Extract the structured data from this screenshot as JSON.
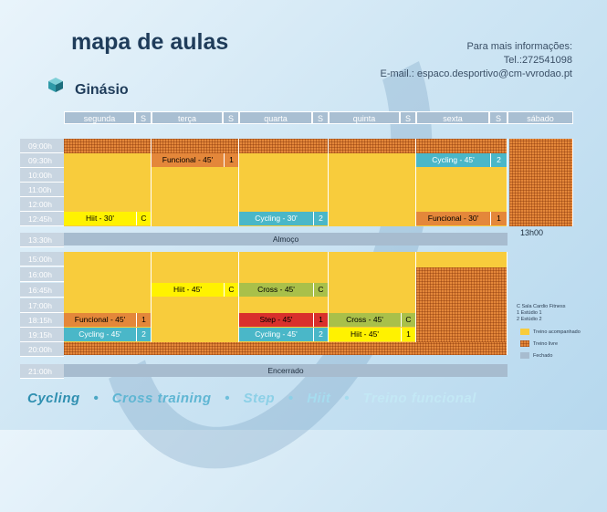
{
  "title": "mapa de aulas",
  "subtitle": "Ginásio",
  "contact": {
    "line1": "Para mais informações:",
    "line2": "Tel.:272541098",
    "line3": "E-mail.: espaco.desportivo@cm-vvrodao.pt"
  },
  "days": [
    "segunda",
    "S",
    "terça",
    "S",
    "quarta",
    "S",
    "quinta",
    "S",
    "sexta",
    "S",
    "sábado"
  ],
  "times": [
    "09:00h",
    "09:30h",
    "10:00h",
    "11:00h",
    "12:00h",
    "12:45h",
    "13:30h",
    "15:00h",
    "16:00h",
    "16:45h",
    "17:00h",
    "18:15h",
    "19:15h",
    "20:00h",
    "21:00h"
  ],
  "classes": [
    {
      "name": "Funcional - 45'",
      "room": "1"
    },
    {
      "name": "Cycling - 45'",
      "room": "2"
    },
    {
      "name": "Hiit - 30'",
      "room": "C"
    },
    {
      "name": "Cycling - 30'",
      "room": "2"
    },
    {
      "name": "Funcional - 30'",
      "room": "1"
    },
    {
      "name": "Hiit - 45'",
      "room": "C"
    },
    {
      "name": "Cross - 45'",
      "room": "C"
    },
    {
      "name": "Funcional - 45'",
      "room": "1"
    },
    {
      "name": "Step - 45'",
      "room": "1"
    },
    {
      "name": "Cross - 45'",
      "room": "C"
    },
    {
      "name": "Cycling - 45'",
      "room": "2"
    },
    {
      "name": "Cycling - 45'",
      "room": "2"
    },
    {
      "name": "Hiit - 45'",
      "room": "1"
    }
  ],
  "lunch": "Almoço",
  "saturday_close": "13h00",
  "closed": "Encerrado",
  "legend": {
    "rooms": [
      "C   Sala Cardio Fitness",
      "1   Estúdio 1",
      "2   Estúdio 2"
    ],
    "items": [
      "Treino acompanhado",
      "Treino livre",
      "Fechado"
    ]
  },
  "footer": [
    "Cycling",
    "•",
    "Cross training",
    "•",
    "Step",
    "•",
    "Hiit",
    "•",
    "Treino funcional"
  ],
  "colors": {
    "accompanied": "#f8cc3c",
    "free": "#e4873a",
    "closed": "#a7bccf",
    "cycling": "#4ab7c8",
    "cross": "#a9c04a",
    "step": "#d9302c",
    "hiit": "#fff200"
  }
}
